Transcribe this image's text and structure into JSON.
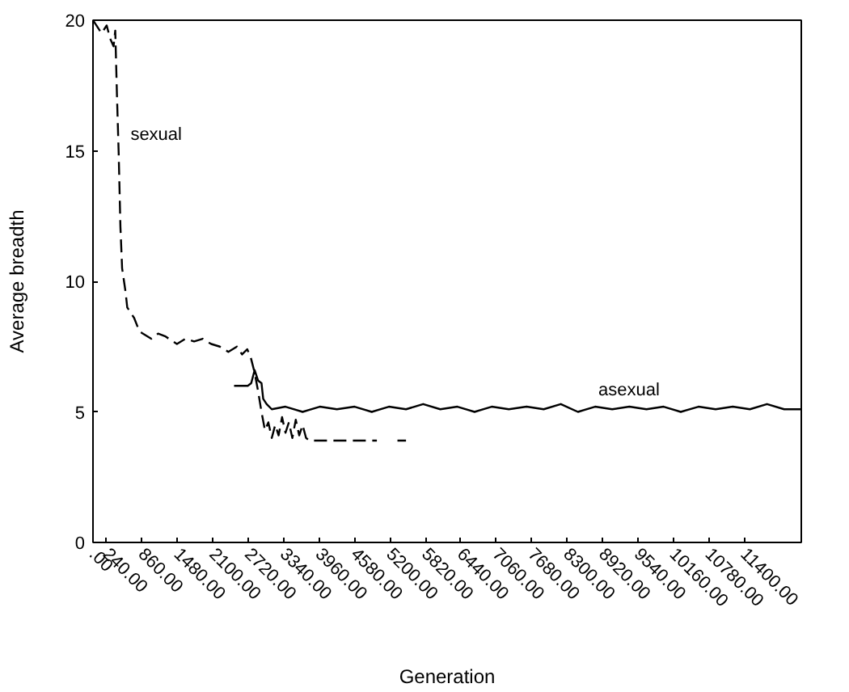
{
  "chart_data": {
    "type": "line",
    "xlabel": "Generation",
    "ylabel": "Average breadth",
    "xlim": [
      0,
      12400
    ],
    "ylim": [
      0,
      20
    ],
    "yticks": [
      0,
      5,
      10,
      15,
      20
    ],
    "xticks": [
      {
        "value": 0,
        "label": ".00"
      },
      {
        "value": 240,
        "label": "240.00"
      },
      {
        "value": 860,
        "label": "860.00"
      },
      {
        "value": 1480,
        "label": "1480.00"
      },
      {
        "value": 2100,
        "label": "2100.00"
      },
      {
        "value": 2720,
        "label": "2720.00"
      },
      {
        "value": 3340,
        "label": "3340.00"
      },
      {
        "value": 3960,
        "label": "3960.00"
      },
      {
        "value": 4580,
        "label": "4580.00"
      },
      {
        "value": 5200,
        "label": "5200.00"
      },
      {
        "value": 5820,
        "label": "5820.00"
      },
      {
        "value": 6440,
        "label": "6440.00"
      },
      {
        "value": 7060,
        "label": "7060.00"
      },
      {
        "value": 7680,
        "label": "7680.00"
      },
      {
        "value": 8300,
        "label": "8300.00"
      },
      {
        "value": 8920,
        "label": "8920.00"
      },
      {
        "value": 9540,
        "label": "9540.00"
      },
      {
        "value": 10160,
        "label": "10160.00"
      },
      {
        "value": 10780,
        "label": "10780.00"
      },
      {
        "value": 11400,
        "label": "11400.00"
      }
    ],
    "grid": false,
    "series": [
      {
        "color": "#000000",
        "line_style": "dashed",
        "x": [
          0,
          60,
          150,
          240,
          300,
          360,
          390,
          420,
          450,
          480,
          510,
          570,
          600,
          660,
          720,
          810,
          870,
          1020,
          1140,
          1260,
          1470,
          1620,
          1770,
          1920,
          2070,
          2220,
          2370,
          2520,
          2610,
          2700,
          2760,
          2830,
          2890,
          2950,
          3010,
          3070,
          3130,
          3190,
          3250,
          3310,
          3370,
          3430,
          3490,
          3550,
          3610,
          3670,
          3730,
          3790,
          4970,
          5100,
          5330,
          5480
        ],
        "values": [
          20.0,
          19.8,
          19.5,
          19.8,
          19.3,
          19.0,
          19.6,
          17.1,
          14.9,
          12.1,
          10.5,
          9.6,
          9.0,
          8.8,
          8.6,
          8.1,
          8.0,
          7.8,
          8.0,
          7.9,
          7.6,
          7.8,
          7.7,
          7.8,
          7.6,
          7.5,
          7.3,
          7.5,
          7.2,
          7.4,
          7.1,
          6.5,
          5.8,
          5.0,
          4.3,
          4.6,
          4.0,
          4.5,
          4.1,
          4.8,
          4.2,
          4.6,
          4.0,
          4.7,
          4.1,
          4.5,
          4.0,
          3.9,
          3.9,
          null,
          3.9,
          3.9
        ]
      },
      {
        "color": "#000000",
        "line_style": "solid",
        "x": [
          2470,
          2710,
          2770,
          2830,
          2890,
          2950,
          2980,
          3040,
          3130,
          3370,
          3670,
          3970,
          4270,
          4580,
          4880,
          5180,
          5480,
          5780,
          6080,
          6380,
          6680,
          6980,
          7280,
          7590,
          7890,
          8190,
          8490,
          8790,
          9090,
          9390,
          9690,
          9990,
          10290,
          10600,
          10900,
          11200,
          11500,
          11800,
          12100,
          12400
        ],
        "values": [
          6.0,
          6.0,
          6.1,
          6.6,
          6.2,
          6.1,
          5.5,
          5.3,
          5.1,
          5.2,
          5.0,
          5.2,
          5.1,
          5.2,
          5.0,
          5.2,
          5.1,
          5.3,
          5.1,
          5.2,
          5.0,
          5.2,
          5.1,
          5.2,
          5.1,
          5.3,
          5.0,
          5.2,
          5.1,
          5.2,
          5.1,
          5.2,
          5.0,
          5.2,
          5.1,
          5.2,
          5.1,
          5.3,
          5.1,
          5.1
        ]
      }
    ],
    "annotations": [
      {
        "text": "sexual",
        "x": 600,
        "y": 15
      },
      {
        "text": "asexual",
        "x": 8790,
        "y": 5.2
      }
    ]
  }
}
